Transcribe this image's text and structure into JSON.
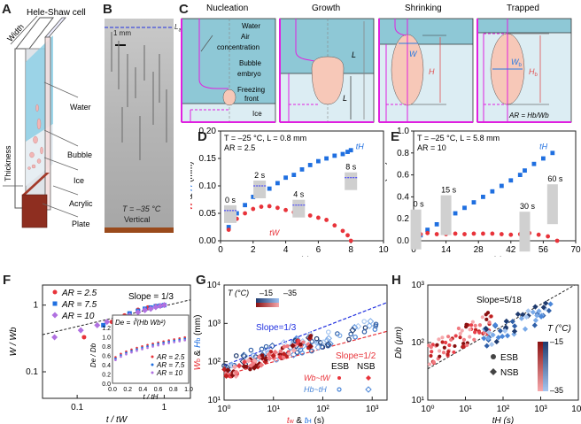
{
  "panels": {
    "A": {
      "letter": "A",
      "title": "Hele-Shaw cell",
      "labels": {
        "width": "Width",
        "thickness": "Thickness",
        "water": "Water",
        "bubble": "Bubble",
        "ice": "Ice",
        "acrylic": "Acrylic",
        "plate": "Plate"
      }
    },
    "B": {
      "letter": "B",
      "scale": "1 mm",
      "la": "L",
      "la_sub": "a",
      "temp": "T = –35 °C",
      "orientation": "Vertical"
    },
    "C": {
      "letter": "C",
      "stages": [
        "Nucleation",
        "Growth",
        "Shrinking",
        "Trapped"
      ],
      "labels": {
        "water": "Water",
        "air1": "Air",
        "air2": "concentration",
        "bubble1": "Bubble",
        "bubble2": "embryo",
        "freezing1": "Freezing",
        "freezing2": "front",
        "ice": "Ice",
        "c": "c",
        "lw": "L",
        "lw_sub": "w",
        "l": "L",
        "w": "W",
        "h": "H",
        "wb": "W",
        "wb_sub": "b",
        "hb": "H",
        "hb_sub": "b",
        "ar": "AR = Hₕ/Wₕ"
      },
      "ar_text": "AR = Hb/Wb"
    }
  },
  "chart_data": [
    {
      "id": "D",
      "type": "scatter",
      "title": "",
      "annotation": [
        "T = –25 °C, L = 0.8 mm",
        "AR = 2.5"
      ],
      "xlabel": "t (s)",
      "ylabel": "W & H (mm)",
      "xlim": [
        0,
        10
      ],
      "ylim": [
        0,
        0.2
      ],
      "xticks": [
        0,
        2,
        4,
        6,
        8,
        10
      ],
      "yticks": [
        0.0,
        0.05,
        0.1,
        0.15,
        0.2
      ],
      "ytick_labels": [
        "0.00",
        "0.05",
        "0.10",
        "0.15",
        "0.20"
      ],
      "series": [
        {
          "name": "H",
          "color": "#1f6fe0",
          "marker": "square",
          "x": [
            0.5,
            1.0,
            1.5,
            2.0,
            2.5,
            3.0,
            3.5,
            4.0,
            4.5,
            5.0,
            5.5,
            6.0,
            6.5,
            7.0,
            7.5,
            7.8,
            8.0
          ],
          "y": [
            0.025,
            0.05,
            0.065,
            0.08,
            0.09,
            0.095,
            0.105,
            0.115,
            0.12,
            0.13,
            0.138,
            0.145,
            0.15,
            0.155,
            0.158,
            0.162,
            0.165
          ]
        },
        {
          "name": "W",
          "color": "#e8333a",
          "marker": "circle",
          "x": [
            0.5,
            1.0,
            1.5,
            2.0,
            2.5,
            3.0,
            3.5,
            4.0,
            4.5,
            5.0,
            5.5,
            6.0,
            6.5,
            7.0,
            7.5,
            7.8,
            8.0
          ],
          "y": [
            0.02,
            0.04,
            0.05,
            0.058,
            0.062,
            0.063,
            0.06,
            0.056,
            0.052,
            0.05,
            0.046,
            0.042,
            0.038,
            0.028,
            0.018,
            0.01,
            0.0
          ]
        }
      ],
      "insets": [
        {
          "label": "0 s"
        },
        {
          "label": "2 s"
        },
        {
          "label": "4 s"
        },
        {
          "label": "8 s"
        }
      ],
      "markers": {
        "tW": "t",
        "tW_sub": "W",
        "tH": "t",
        "tH_sub": "H"
      }
    },
    {
      "id": "E",
      "type": "scatter",
      "annotation": [
        "T = –25 °C, L = 5.8 mm",
        "AR = 10"
      ],
      "xlabel": "t (s)",
      "ylabel": "W & H (mm)",
      "xlim": [
        0,
        70
      ],
      "ylim": [
        0,
        1.0
      ],
      "xticks": [
        0,
        14,
        28,
        42,
        56,
        70
      ],
      "yticks": [
        0.0,
        0.2,
        0.4,
        0.6,
        0.8,
        1.0
      ],
      "ytick_labels": [
        "0.0",
        "0.2",
        "0.4",
        "0.6",
        "0.8",
        "1.0"
      ],
      "series": [
        {
          "name": "H",
          "color": "#1f6fe0",
          "marker": "square",
          "x": [
            1,
            3,
            6,
            10,
            14,
            18,
            22,
            26,
            30,
            34,
            38,
            42,
            46,
            48,
            52,
            56,
            60
          ],
          "y": [
            0.02,
            0.05,
            0.1,
            0.15,
            0.2,
            0.25,
            0.3,
            0.35,
            0.4,
            0.45,
            0.5,
            0.55,
            0.6,
            0.64,
            0.7,
            0.75,
            0.8
          ]
        },
        {
          "name": "W",
          "color": "#e8333a",
          "marker": "circle",
          "x": [
            1,
            3,
            6,
            10,
            14,
            18,
            22,
            26,
            30,
            34,
            38,
            42,
            46,
            50,
            54,
            58,
            62
          ],
          "y": [
            0.03,
            0.06,
            0.07,
            0.06,
            0.06,
            0.065,
            0.06,
            0.065,
            0.065,
            0.065,
            0.06,
            0.055,
            0.06,
            0.07,
            0.055,
            0.04,
            0.0
          ]
        }
      ],
      "insets": [
        {
          "label": "0 s"
        },
        {
          "label": "15 s"
        },
        {
          "label": "30 s"
        },
        {
          "label": "60 s"
        }
      ],
      "markers": {
        "tW": "t",
        "tW_sub": "W",
        "tH": "t",
        "tH_sub": "H"
      }
    },
    {
      "id": "F",
      "type": "scatter",
      "xlabel": "t / tW",
      "ylabel": "W / Wb",
      "xscale": "log",
      "yscale": "log",
      "xlim": [
        0.04,
        2
      ],
      "ylim": [
        0.04,
        2
      ],
      "xtick_labels": [
        "0.1",
        "1"
      ],
      "ytick_labels": [
        "0.1",
        "1"
      ],
      "slope_label": "Slope = 1/3",
      "legend": [
        "AR = 2.5",
        "AR = 7.5",
        "AR = 10"
      ],
      "series": [
        {
          "name": "AR = 2.5",
          "color": "#e8333a",
          "x": [
            0.12,
            0.25,
            0.35,
            0.5,
            0.65,
            0.8,
            1.0
          ],
          "y": [
            0.33,
            0.56,
            0.7,
            0.85,
            0.92,
            0.97,
            1.0
          ]
        },
        {
          "name": "AR = 7.5",
          "color": "#1f6fe0",
          "x": [
            0.2,
            0.3,
            0.4,
            0.5,
            0.6,
            0.7,
            0.8,
            0.9,
            1.0
          ],
          "y": [
            0.5,
            0.65,
            0.75,
            0.82,
            0.88,
            0.92,
            0.96,
            0.98,
            1.0
          ]
        },
        {
          "name": "AR = 10",
          "color": "#b070e0",
          "x": [
            0.055,
            0.11,
            0.17,
            0.22,
            0.3,
            0.4,
            0.5,
            0.6,
            0.7,
            0.8,
            0.9,
            1.0
          ],
          "y": [
            0.33,
            0.42,
            0.5,
            0.56,
            0.62,
            0.7,
            0.78,
            0.84,
            0.88,
            0.93,
            0.97,
            1.0
          ]
        }
      ],
      "inset": {
        "formula": "De = ∛(Hb Wb²)",
        "xlabel": "t / tH",
        "ylabel": "De / Db",
        "xlim": [
          0,
          1
        ],
        "ylim": [
          0,
          1.2
        ],
        "xtick_labels": [
          "0.0",
          "0.2",
          "0.4",
          "0.6",
          "0.8",
          "1.0"
        ],
        "ytick_labels": [
          "0.0",
          "0.2",
          "0.4",
          "0.6",
          "0.8",
          "1.0",
          "1.2"
        ],
        "legend": [
          "AR = 2.5",
          "AR = 7.5",
          "AR = 10"
        ]
      }
    },
    {
      "id": "G",
      "type": "scatter",
      "xlabel": "tw & tH (s)",
      "ylabel": "Wb & Hb (mm)",
      "xscale": "log",
      "yscale": "log",
      "xlim": [
        1,
        2000
      ],
      "ylim": [
        10,
        10000
      ],
      "xtick_labels": [
        "10⁰",
        "10¹",
        "10²",
        "10³"
      ],
      "ytick_labels": [
        "10¹",
        "10²",
        "10³",
        "10⁴"
      ],
      "slopes": [
        "Slope=1/3",
        "Slope=1/2"
      ],
      "colorbar": {
        "label": "T (°C)",
        "min": "–15",
        "max": "–35"
      },
      "legend": {
        "esb": "ESB",
        "nsb": "NSB",
        "w_row": "Wb~tW",
        "h_row": "Hb~tH"
      }
    },
    {
      "id": "H",
      "type": "scatter",
      "xlabel": "tH (s)",
      "ylabel": "Db (μm)",
      "xscale": "log",
      "yscale": "log",
      "xlim": [
        1,
        10000
      ],
      "ylim": [
        10,
        1000
      ],
      "xtick_labels": [
        "10⁰",
        "10¹",
        "10²",
        "10³",
        "10⁴"
      ],
      "ytick_labels": [
        "10¹",
        "10²",
        "10³"
      ],
      "slope_label": "Slope=5/18",
      "colorbar": {
        "label": "T (°C)",
        "min": "–15",
        "max": "–35"
      },
      "legend": [
        "ESB",
        "NSB"
      ]
    }
  ]
}
